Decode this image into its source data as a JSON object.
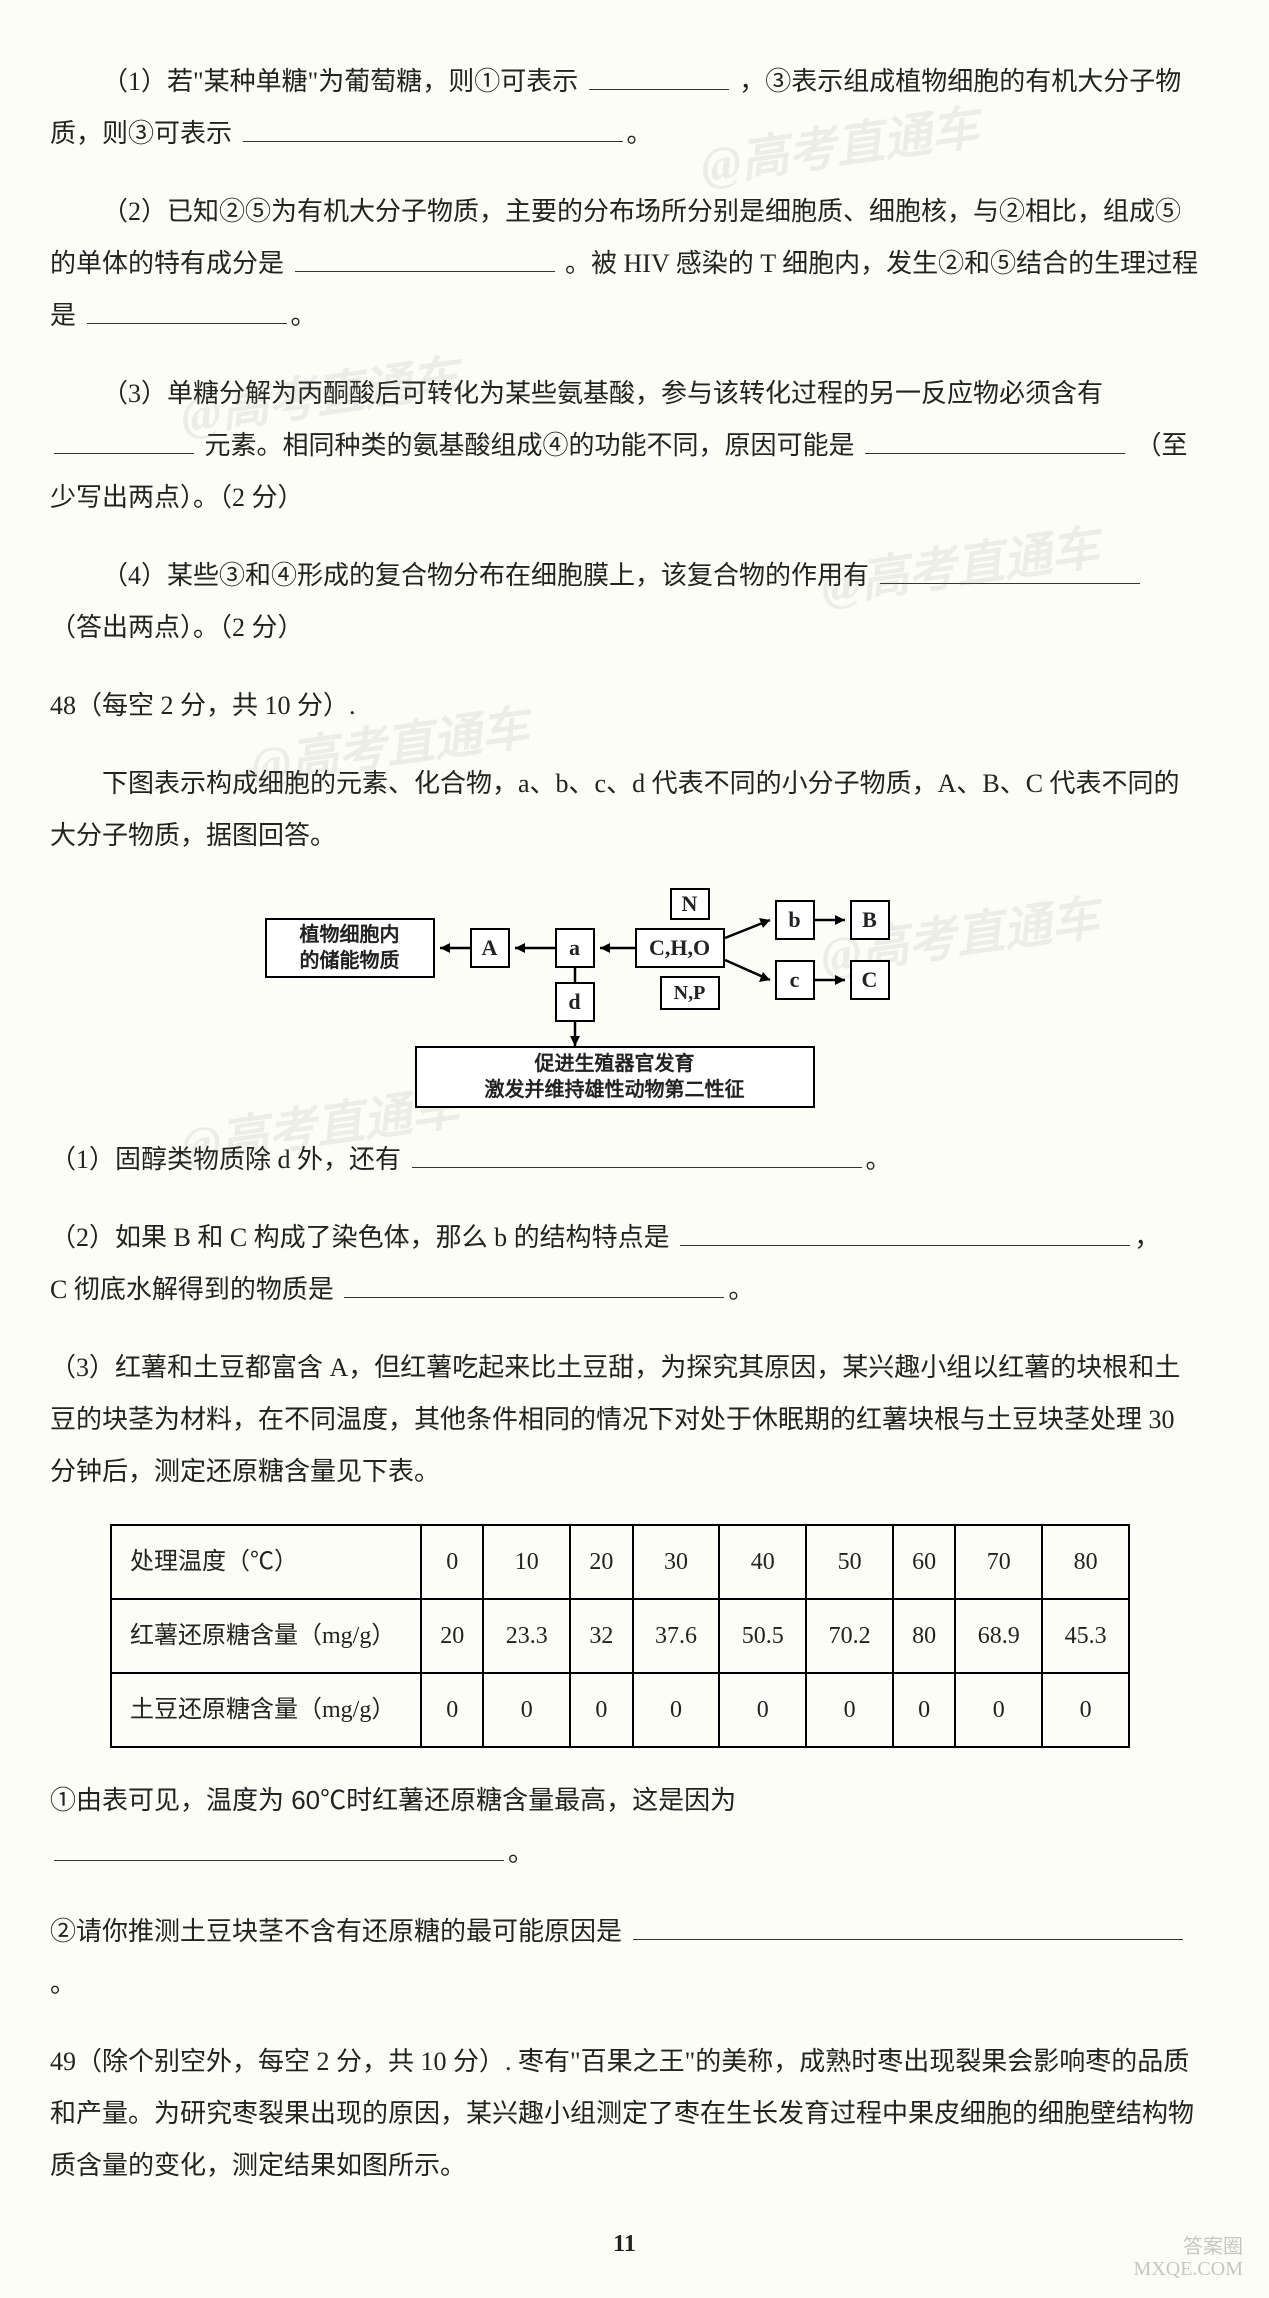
{
  "q47": {
    "p1": "（1）若\"某种单糖\"为葡萄糖，则①可表示",
    "p1b": "，③表示组成植物细胞的有机大分子物质，则③可表示",
    "p2": "（2）已知②⑤为有机大分子物质，主要的分布场所分别是细胞质、细胞核，与②相比，组成⑤的单体的特有成分是",
    "p2b": "。被 HIV 感染的 T 细胞内，发生②和⑤结合的生理过程是",
    "p3": "（3）单糖分解为丙酮酸后可转化为某些氨基酸，参与该转化过程的另一反应物必须含有",
    "p3b": "元素。相同种类的氨基酸组成④的功能不同，原因可能是",
    "p3c": "（至少写出两点）。（2 分）",
    "p4": "（4）某些③和④形成的复合物分布在细胞膜上，该复合物的作用有",
    "p4b": "（答出两点）。（2 分）"
  },
  "q48": {
    "head": "48（每空 2 分，共 10 分）.",
    "intro": "下图表示构成细胞的元素、化合物，a、b、c、d 代表不同的小分子物质，A、B、C 代表不同的大分子物质，据图回答。",
    "diagram": {
      "box_plant": "植物细胞内\n的储能物质",
      "box_A": "A",
      "box_a": "a",
      "box_CHO": "C,H,O",
      "box_N": "N",
      "box_NP": "N,P",
      "box_b": "b",
      "box_B": "B",
      "box_c": "c",
      "box_Cc": "C",
      "box_d": "d",
      "box_desc": "促进生殖器官发育\n激发并维持雄性动物第二性征"
    },
    "p1": "（1）固醇类物质除 d 外，还有",
    "p2": "（2）如果 B 和 C 构成了染色体，那么 b 的结构特点是",
    "p2b": "C 彻底水解得到的物质是",
    "p3": "（3）红薯和土豆都富含 A，但红薯吃起来比土豆甜，为探究其原因，某兴趣小组以红薯的块根和土豆的块茎为材料，在不同温度，其他条件相同的情况下对处于休眠期的红薯块根与土豆块茎处理 30 分钟后，测定还原糖含量见下表。",
    "table": {
      "row_head": "处理温度（℃）",
      "row_sweet": "红薯还原糖含量（mg/g）",
      "row_potato": "土豆还原糖含量（mg/g）",
      "temps": [
        "0",
        "10",
        "20",
        "30",
        "40",
        "50",
        "60",
        "70",
        "80"
      ],
      "sweet": [
        "20",
        "23.3",
        "32",
        "37.6",
        "50.5",
        "70.2",
        "80",
        "68.9",
        "45.3"
      ],
      "potato": [
        "0",
        "0",
        "0",
        "0",
        "0",
        "0",
        "0",
        "0",
        "0"
      ]
    },
    "sub1": "①由表可见，温度为 60℃时红薯还原糖含量最高，这是因为",
    "sub2": "②请你推测土豆块茎不含有还原糖的最可能原因是"
  },
  "q49": {
    "head": "49（除个别空外，每空 2 分，共 10 分）. 枣有\"百果之王\"的美称，成熟时枣出现裂果会影响枣的品质和产量。为研究枣裂果出现的原因，某兴趣小组测定了枣在生长发育过程中果皮细胞的细胞壁结构物质含量的变化，测定结果如图所示。"
  },
  "pagenum": "11",
  "watermark_text": "@高考直通车",
  "footer_brand1": "答案圈",
  "footer_brand2": "MXQE.COM"
}
